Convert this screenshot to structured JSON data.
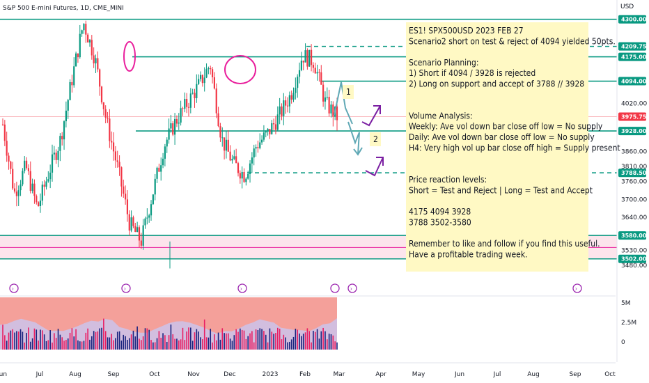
{
  "chart_data": {
    "type": "candlestick",
    "title": "S&P 500 E-mini Futures, 1D, CME_MINI",
    "currency": "USD",
    "y_range": [
      3455,
      4355
    ],
    "y_ticks": [
      "4020.00",
      "3860.00",
      "3810.00",
      "3760.00",
      "3700.00",
      "3640.00",
      "3530.00",
      "3480.00"
    ],
    "x_ticks": [
      "Jun",
      "Jul",
      "Aug",
      "Sep",
      "Oct",
      "Nov",
      "Dec",
      "2023",
      "Feb",
      "Mar",
      "Apr",
      "May",
      "Jun",
      "Jul",
      "Aug",
      "Sep",
      "Oct"
    ],
    "price_levels": [
      {
        "label": "4300.00",
        "price": 4300,
        "color": "#089981",
        "style": "solid"
      },
      {
        "label": "4209.75",
        "price": 4209.75,
        "color": "#089981",
        "style": "dashed"
      },
      {
        "label": "4175.00",
        "price": 4175,
        "color": "#089981",
        "style": "solid"
      },
      {
        "label": "4094.00",
        "price": 4094,
        "color": "#089981",
        "style": "solid"
      },
      {
        "label": "3975.75",
        "price": 3975.75,
        "color": "#f23645",
        "style": "thin"
      },
      {
        "label": "3928.00",
        "price": 3928,
        "color": "#089981",
        "style": "solid"
      },
      {
        "label": "3788.50",
        "price": 3788.5,
        "color": "#089981",
        "style": "dashed"
      },
      {
        "label": "3580.00",
        "price": 3580,
        "color": "#089981",
        "style": "solid"
      },
      {
        "label": "3502.00",
        "price": 3502,
        "color": "#089981",
        "style": "solid"
      }
    ],
    "supply_zone": {
      "from": 3502,
      "to": 3580
    },
    "wave_labels": [
      "1",
      "2"
    ],
    "volume_axis": [
      "5M",
      "2.5M",
      "0"
    ],
    "series_shape_hint": [
      3950,
      3720,
      3810,
      3670,
      3790,
      3900,
      4100,
      4290,
      4170,
      3960,
      3800,
      3620,
      3560,
      3720,
      3880,
      3960,
      4020,
      4080,
      4150,
      3900,
      3820,
      3780,
      3880,
      3920,
      3980,
      4050,
      4180,
      4160,
      4020,
      3975
    ]
  },
  "annotation": {
    "lines": [
      "ES1! SPX500USD 2023 FEB 27",
      "Scenario2 short on test & reject of 4094 yielded 50pts.",
      "",
      "Scenario Planning:",
      "1) Short if 4094  / 3928 is rejected",
      "2) Long on support and accept of 3788  // 3928",
      "",
      "",
      "Volume Analysis:",
      "Weekly: Ave vol down bar close off low = No supply",
      "Daily: Ave vol down bar close off low = No supply",
      "H4: Very high vol up bar close off high = Supply present",
      "",
      "",
      "Price reaction levels:",
      "Short = Test and Reject   |   Long = Test and Accept",
      "",
      "4175                    4094                  3928",
      "3788                    3502-3580",
      "",
      "Remember to like and follow if you find this useful.",
      "Have a profitable trading week."
    ]
  },
  "colors": {
    "up": "#089981",
    "down": "#f23645",
    "level": "#089981",
    "price": "#f23645",
    "note_bg": "#fff9c4",
    "zone": "#fce4ec",
    "circle": "#e91e9c",
    "arrow_up": "#7b1fa2",
    "arrow_down": "#5fa8b5",
    "vol_bg_top": "#f4a09a",
    "vol_band": "#c9c5f0"
  }
}
